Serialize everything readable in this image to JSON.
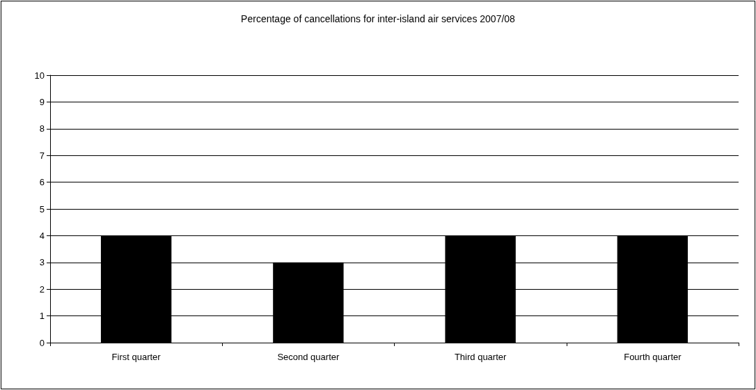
{
  "chart_data": {
    "type": "bar",
    "title": "Percentage of cancellations for inter-island air services 2007/08",
    "categories": [
      "First quarter",
      "Second quarter",
      "Third quarter",
      "Fourth quarter"
    ],
    "values": [
      4,
      3,
      4,
      4
    ],
    "color": "#000000",
    "ylim": [
      0,
      10
    ],
    "yticks": [
      0,
      1,
      2,
      3,
      4,
      5,
      6,
      7,
      8,
      9,
      10
    ],
    "grid": "y"
  }
}
